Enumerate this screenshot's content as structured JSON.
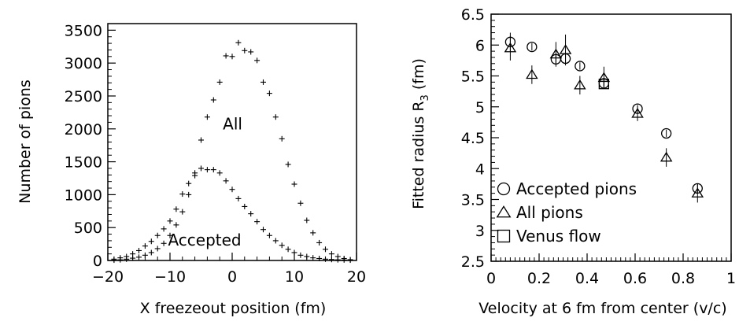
{
  "chart_data": [
    {
      "type": "scatter",
      "xlabel": "X freezeout position (fm)",
      "ylabel": "Number of pions",
      "xlim": [
        -20,
        20
      ],
      "ylim": [
        0,
        3600
      ],
      "xticks": [
        -20,
        -10,
        0,
        10,
        20
      ],
      "yticks": [
        0,
        500,
        1000,
        1500,
        2000,
        2500,
        3000,
        3500
      ],
      "xticklabels": [
        "−20",
        "−10",
        "0",
        "10",
        "20"
      ],
      "yticklabels": [
        "0",
        "500",
        "1000",
        "1500",
        "2000",
        "2500",
        "3000",
        "3500"
      ],
      "annotations": [
        {
          "text": "All",
          "x": -1.5,
          "y": 1990
        },
        {
          "text": "Accepted",
          "x": -4.5,
          "y": 230
        }
      ],
      "series": [
        {
          "marker": "plus",
          "x": [
            -19,
            -18,
            -17,
            -16,
            -15,
            -14,
            -13,
            -12,
            -11,
            -10,
            -9,
            -8,
            -7,
            -6,
            -5,
            -4,
            -3,
            -2,
            -1,
            0,
            1,
            2,
            3,
            4,
            5,
            6,
            7,
            8,
            9,
            10,
            11,
            12,
            13,
            14,
            15,
            16,
            17,
            18,
            19
          ],
          "y": [
            5,
            10,
            20,
            35,
            50,
            80,
            120,
            180,
            260,
            380,
            540,
            740,
            1000,
            1330,
            1830,
            2180,
            2440,
            2710,
            3110,
            3100,
            3310,
            3190,
            3170,
            3040,
            2710,
            2540,
            2180,
            1850,
            1460,
            1160,
            870,
            610,
            420,
            270,
            170,
            100,
            60,
            30,
            12
          ]
        },
        {
          "marker": "plus",
          "x": [
            -19,
            -18,
            -17,
            -16,
            -15,
            -14,
            -13,
            -12,
            -11,
            -10,
            -9,
            -8,
            -7,
            -6,
            -5,
            -4,
            -3,
            -2,
            -1,
            0,
            1,
            2,
            3,
            4,
            5,
            6,
            7,
            8,
            9,
            10,
            11,
            12,
            13,
            14,
            15,
            16,
            17,
            18,
            19
          ],
          "y": [
            20,
            40,
            60,
            100,
            150,
            220,
            290,
            380,
            480,
            600,
            780,
            1010,
            1170,
            1290,
            1400,
            1380,
            1380,
            1330,
            1210,
            1080,
            940,
            820,
            710,
            590,
            470,
            380,
            300,
            230,
            170,
            120,
            80,
            60,
            40,
            30,
            20,
            15,
            10,
            8,
            5
          ]
        }
      ]
    },
    {
      "type": "scatter",
      "xlabel": "Velocity at 6 fm from center (v/c)",
      "ylabel": "Fitted radius R",
      "ylabel_sub": "3",
      "ylabel_unit": "(fm)",
      "xlim": [
        0,
        1
      ],
      "ylim": [
        2.5,
        6.5
      ],
      "xticks": [
        0,
        0.2,
        0.4,
        0.6,
        0.8,
        1
      ],
      "yticks": [
        2.5,
        3,
        3.5,
        4,
        4.5,
        5,
        5.5,
        6,
        6.5
      ],
      "xticklabels": [
        "0",
        "0.2",
        "0.4",
        "0.6",
        "0.8",
        "1"
      ],
      "yticklabels": [
        "2.5",
        "3",
        "3.5",
        "4",
        "4.5",
        "5",
        "5.5",
        "6",
        "6.5"
      ],
      "legend_position": "bottom-left",
      "series": [
        {
          "name": "Accepted pions",
          "marker": "circle",
          "x": [
            0.08,
            0.17,
            0.27,
            0.31,
            0.37,
            0.47,
            0.61,
            0.73,
            0.86
          ],
          "y": [
            6.05,
            5.97,
            5.77,
            5.78,
            5.66,
            5.38,
            4.97,
            4.57,
            3.68
          ],
          "err": [
            0.15,
            0.06,
            0.08,
            0.08,
            0.06,
            0.06,
            0.06,
            0.06,
            0.08
          ]
        },
        {
          "name": "All pions",
          "marker": "triangle",
          "x": [
            0.08,
            0.17,
            0.27,
            0.31,
            0.37,
            0.47,
            0.61,
            0.73,
            0.86
          ],
          "y": [
            5.95,
            5.52,
            5.85,
            5.92,
            5.35,
            5.47,
            4.89,
            4.18,
            3.6
          ],
          "err": [
            0.2,
            0.15,
            0.2,
            0.25,
            0.15,
            0.18,
            0.12,
            0.15,
            0.15
          ]
        },
        {
          "name": "Venus flow",
          "marker": "square",
          "x": [
            0.47
          ],
          "y": [
            5.37
          ],
          "err": [
            0.04
          ]
        }
      ]
    }
  ]
}
